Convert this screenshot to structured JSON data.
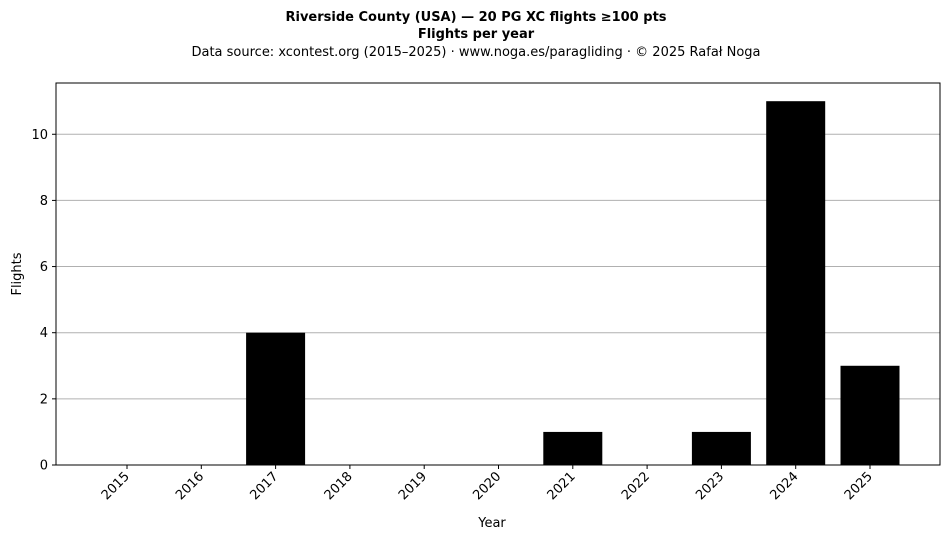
{
  "chart_data": {
    "type": "bar",
    "title": "Riverside County (USA)  —  20 PG XC flights ≥100 pts",
    "title_line2": "Flights per year",
    "subtitle": "Data source: xcontest.org (2015–2025)  ·  www.noga.es/paragliding  ·  © 2025 Rafał Noga",
    "xlabel": "Year",
    "ylabel": "Flights",
    "categories": [
      "2015",
      "2016",
      "2017",
      "2018",
      "2019",
      "2020",
      "2021",
      "2022",
      "2023",
      "2024",
      "2025"
    ],
    "values": [
      0,
      0,
      4,
      0,
      0,
      0,
      1,
      0,
      1,
      11,
      3
    ],
    "yticks": [
      0,
      2,
      4,
      6,
      8,
      10
    ],
    "ylim": [
      0,
      11.55
    ],
    "grid": "horizontal",
    "bar_color": "#000000",
    "grid_color": "#b0b0b0"
  }
}
